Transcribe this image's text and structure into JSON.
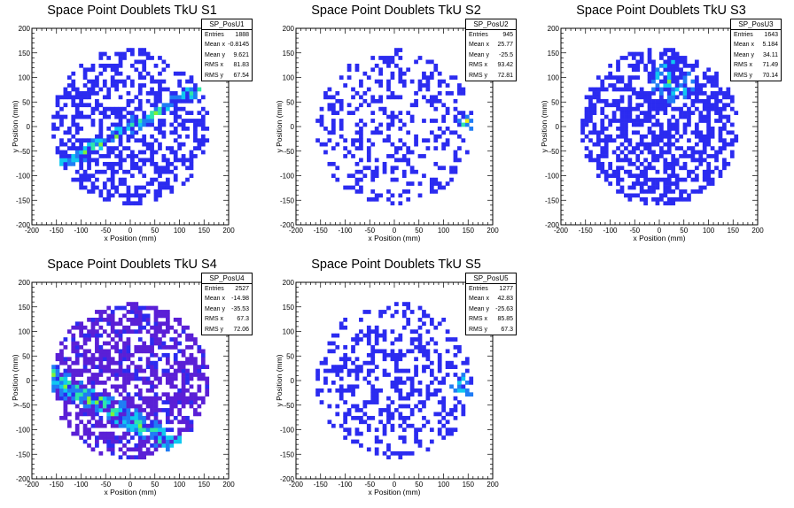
{
  "figure": {
    "panels": [
      {
        "title": "Space Point Doublets TkU S1",
        "stat_name": "SP_PosU1",
        "stats": [
          [
            "Entries",
            "1888"
          ],
          [
            "Mean x",
            "-0.8145"
          ],
          [
            "Mean y",
            "9.621"
          ],
          [
            "RMS x",
            "81.83"
          ],
          [
            "RMS y",
            "67.54"
          ]
        ]
      },
      {
        "title": "Space Point Doublets TkU S2",
        "stat_name": "SP_PosU2",
        "stats": [
          [
            "Entries",
            "945"
          ],
          [
            "Mean x",
            "25.77"
          ],
          [
            "Mean y",
            "-25.5"
          ],
          [
            "RMS x",
            "93.42"
          ],
          [
            "RMS y",
            "72.81"
          ]
        ]
      },
      {
        "title": "Space Point Doublets TkU S3",
        "stat_name": "SP_PosU3",
        "stats": [
          [
            "Entries",
            "1643"
          ],
          [
            "Mean x",
            "5.184"
          ],
          [
            "Mean y",
            "34.11"
          ],
          [
            "RMS x",
            "71.49"
          ],
          [
            "RMS y",
            "70.14"
          ]
        ]
      },
      {
        "title": "Space Point Doublets TkU S4",
        "stat_name": "SP_PosU4",
        "stats": [
          [
            "Entries",
            "2527"
          ],
          [
            "Mean x",
            "-14.98"
          ],
          [
            "Mean y",
            "-35.53"
          ],
          [
            "RMS x",
            "67.3"
          ],
          [
            "RMS y",
            "72.06"
          ]
        ]
      },
      {
        "title": "Space Point Doublets TkU S5",
        "stat_name": "SP_PosU5",
        "stats": [
          [
            "Entries",
            "1277"
          ],
          [
            "Mean x",
            "42.83"
          ],
          [
            "Mean y",
            "-25.63"
          ],
          [
            "RMS x",
            "85.85"
          ],
          [
            "RMS y",
            "67.3"
          ]
        ]
      }
    ]
  },
  "chart_data": {
    "type": "heatmap",
    "xlabel": "x Position (mm)",
    "ylabel": "y Position (mm)",
    "xlim": [
      -200,
      200
    ],
    "ylim": [
      -200,
      200
    ],
    "xticks": [
      -200,
      -150,
      -100,
      -50,
      0,
      50,
      100,
      150,
      200
    ],
    "yticks": [
      -200,
      -150,
      -100,
      -50,
      0,
      50,
      100,
      150,
      200
    ],
    "bin_width_mm": 8,
    "detector_radius_mm": 160,
    "colors": {
      "palette": [
        "#5a1fd6",
        "#2b2bf0",
        "#1f7cf5",
        "#10c8f0",
        "#2fe6a8",
        "#7ef23a",
        "#eeee10",
        "#ff3b1a"
      ],
      "background": "#ffffff",
      "axis": "#000000"
    },
    "series": [
      {
        "name": "SP_PosU1",
        "density": 0.42,
        "band": {
          "slope": 0.55,
          "intercept": 0,
          "width": 18
        }
      },
      {
        "name": "SP_PosU2",
        "density": 0.3,
        "hotspot": {
          "x": 150,
          "y": 10,
          "radius": 28
        }
      },
      {
        "name": "SP_PosU3",
        "density": 0.55,
        "hotspot": {
          "x": 20,
          "y": 90,
          "radius": 60
        }
      },
      {
        "name": "SP_PosU4",
        "density": 0.6,
        "band": {
          "slope": -0.55,
          "intercept": -80,
          "width": 30
        }
      },
      {
        "name": "SP_PosU5",
        "density": 0.33,
        "hotspot": {
          "x": 145,
          "y": -10,
          "radius": 35
        }
      }
    ]
  }
}
